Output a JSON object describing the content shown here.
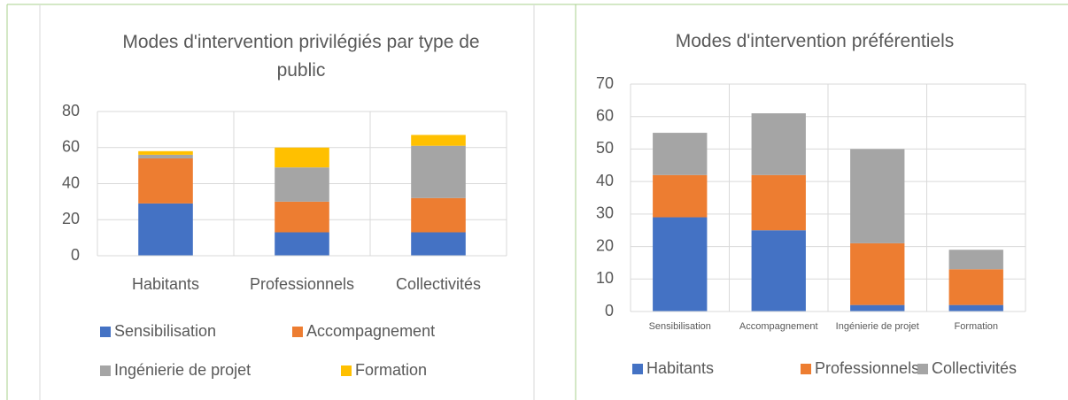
{
  "chart_data": [
    {
      "type": "bar",
      "stacked": true,
      "title": "Modes d'intervention privilégiés par type de public",
      "categories": [
        "Habitants",
        "Professionnels",
        "Collectivités"
      ],
      "series": [
        {
          "name": "Sensibilisation",
          "color": "#4472c4",
          "values": [
            29,
            13,
            13
          ]
        },
        {
          "name": "Accompagnement",
          "color": "#ed7d31",
          "values": [
            25,
            17,
            19
          ]
        },
        {
          "name": "Ingénierie de projet",
          "color": "#a5a5a5",
          "values": [
            2,
            19,
            29
          ]
        },
        {
          "name": "Formation",
          "color": "#ffc000",
          "values": [
            2,
            11,
            6
          ]
        }
      ],
      "ylim": [
        0,
        80
      ],
      "yticks": [
        0,
        20,
        40,
        60,
        80
      ],
      "grid": true,
      "legend": "bottom"
    },
    {
      "type": "bar",
      "stacked": true,
      "title": "Modes d'intervention préférentiels",
      "categories": [
        "Sensibilisation",
        "Accompagnement",
        "Ingénierie de projet",
        "Formation"
      ],
      "series": [
        {
          "name": "Habitants",
          "color": "#4472c4",
          "values": [
            29,
            25,
            2,
            2
          ]
        },
        {
          "name": "Professionnels",
          "color": "#ed7d31",
          "values": [
            13,
            17,
            19,
            11
          ]
        },
        {
          "name": "Collectivités",
          "color": "#a5a5a5",
          "values": [
            13,
            19,
            29,
            6
          ]
        }
      ],
      "ylim": [
        0,
        70
      ],
      "yticks": [
        0,
        10,
        20,
        30,
        40,
        50,
        60,
        70
      ],
      "grid": true,
      "legend": "bottom"
    }
  ]
}
